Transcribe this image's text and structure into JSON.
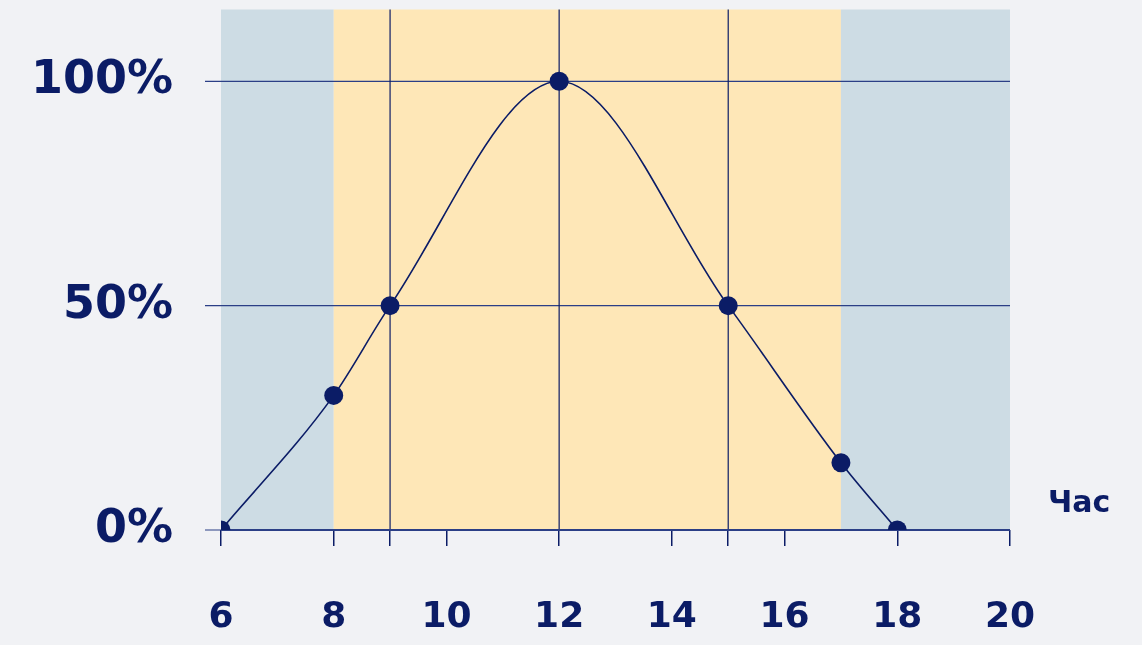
{
  "chart_data": {
    "type": "line",
    "xlabel": "Час",
    "x": [
      6,
      8,
      9,
      12,
      15,
      17,
      18
    ],
    "series": [
      {
        "color": "#0b1c66",
        "values": [
          0,
          30,
          50,
          100,
          50,
          15,
          0
        ]
      }
    ],
    "xlim": [
      6,
      20
    ],
    "xticks": [
      6,
      8,
      {
        "value": 9,
        "label": null
      },
      10,
      12,
      14,
      {
        "value": 15,
        "label": null
      },
      16,
      18,
      20
    ],
    "ylim": [
      0,
      116
    ],
    "yticks": [
      {
        "value": 0,
        "label": "0%"
      },
      {
        "value": 50,
        "label": "50%"
      },
      {
        "value": 100,
        "label": "100%"
      }
    ],
    "grid": "y",
    "legend": false,
    "marker": "circle",
    "line_style": "solid",
    "ref_lines": [
      {
        "axis": "x",
        "value": 9,
        "color": "#0b1c66"
      },
      {
        "axis": "x",
        "value": 12,
        "color": "#0b1c66"
      },
      {
        "axis": "x",
        "value": 15,
        "color": "#0b1c66"
      }
    ],
    "bands": [
      {
        "axis": "x",
        "from": 6,
        "to": 8,
        "color": "#cddce4"
      },
      {
        "axis": "x",
        "from": 8,
        "to": 17,
        "color": "#fee7b7"
      },
      {
        "axis": "x",
        "from": 17,
        "to": 20,
        "color": "#cddce4"
      }
    ]
  }
}
